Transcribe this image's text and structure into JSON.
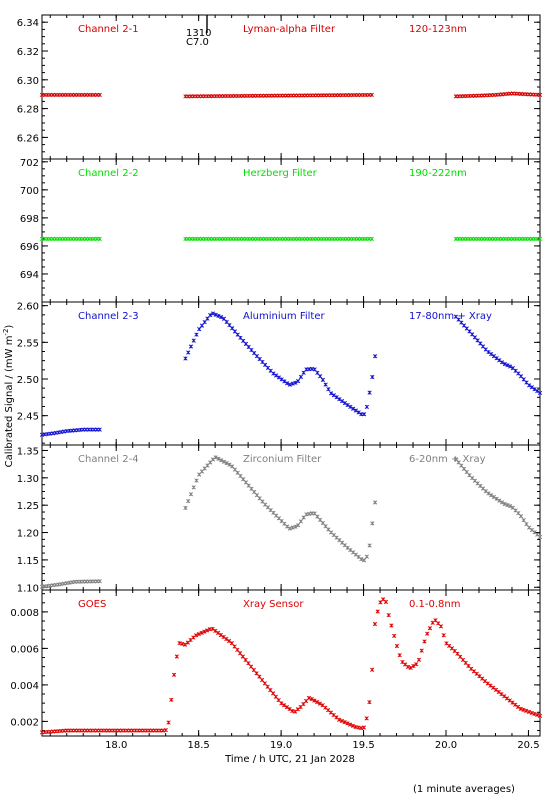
{
  "x_axis_label": "Time / h UTC, 21 Jan 2028",
  "y_axis_label": "Calibrated Signal / (mW m",
  "y_axis_label_sup": "-2",
  "y_axis_label_end": ")",
  "footnote": "(1 minute averages)",
  "marker_text": {
    "top": "1310",
    "bottom": "C7.0"
  },
  "chart_data": [
    {
      "type": "scatter",
      "labels": [
        "Channel 2-1",
        "Lyman-alpha Filter",
        "120-123nm"
      ],
      "color": "#d40000",
      "ylim": [
        6.245,
        6.345
      ],
      "yticks": [
        "6.26",
        "6.28",
        "6.30",
        "6.32",
        "6.34"
      ],
      "series": [
        {
          "x": [
            17.55,
            17.9
          ],
          "y": [
            6.2895,
            6.2895
          ]
        },
        {
          "x": [
            18.42,
            19.55
          ],
          "y": [
            6.2885,
            6.2895
          ]
        },
        {
          "x": [
            20.06,
            20.2,
            20.3,
            20.4,
            20.57
          ],
          "y": [
            6.2885,
            6.289,
            6.2895,
            6.2905,
            6.2895
          ]
        }
      ]
    },
    {
      "type": "scatter",
      "labels": [
        "Channel 2-2",
        "Herzberg Filter",
        "190-222nm"
      ],
      "color": "#00e000",
      "ylim": [
        692.0,
        702.2
      ],
      "yticks": [
        "694",
        "696",
        "698",
        "700",
        "702"
      ],
      "series": [
        {
          "x": [
            17.55,
            17.9
          ],
          "y": [
            696.5,
            696.5
          ]
        },
        {
          "x": [
            18.42,
            19.55
          ],
          "y": [
            696.5,
            696.5
          ]
        },
        {
          "x": [
            20.06,
            20.57
          ],
          "y": [
            696.5,
            696.5
          ]
        }
      ]
    },
    {
      "type": "scatter",
      "labels": [
        "Channel 2-3",
        "Aluminium Filter",
        "17-80nm + Xray"
      ],
      "color": "#1010d0",
      "ylim": [
        2.41,
        2.605
      ],
      "yticks": [
        "2.45",
        "2.50",
        "2.55",
        "2.60"
      ],
      "series": [
        {
          "x": [
            17.55,
            17.62,
            17.7,
            17.8,
            17.9
          ],
          "y": [
            2.424,
            2.426,
            2.429,
            2.431,
            2.431
          ]
        },
        {
          "x": [
            18.42,
            18.5,
            18.58,
            18.65,
            18.75,
            18.85,
            18.95,
            19.05,
            19.1,
            19.15,
            19.2,
            19.25,
            19.3,
            19.4,
            19.5,
            19.52,
            19.55,
            19.57
          ],
          "y": [
            2.528,
            2.567,
            2.59,
            2.583,
            2.557,
            2.532,
            2.508,
            2.492,
            2.496,
            2.513,
            2.514,
            2.5,
            2.481,
            2.465,
            2.45,
            2.462,
            2.497,
            2.531
          ]
        },
        {
          "x": [
            20.06,
            20.15,
            20.25,
            20.35,
            20.4,
            20.45,
            20.5,
            20.57
          ],
          "y": [
            2.585,
            2.563,
            2.538,
            2.521,
            2.516,
            2.505,
            2.492,
            2.481
          ]
        }
      ]
    },
    {
      "type": "scatter",
      "labels": [
        "Channel 2-4",
        "Zirconium Filter",
        "6-20nm + Xray"
      ],
      "color": "#808080",
      "ylim": [
        1.095,
        1.36
      ],
      "yticks": [
        "1.10",
        "1.15",
        "1.20",
        "1.25",
        "1.30",
        "1.35"
      ],
      "series": [
        {
          "x": [
            17.55,
            17.65,
            17.75,
            17.9
          ],
          "y": [
            1.101,
            1.105,
            1.11,
            1.111
          ]
        },
        {
          "x": [
            18.42,
            18.5,
            18.6,
            18.7,
            18.8,
            18.9,
            19.0,
            19.05,
            19.1,
            19.15,
            19.2,
            19.3,
            19.4,
            19.5,
            19.53,
            19.55,
            19.57
          ],
          "y": [
            1.245,
            1.305,
            1.338,
            1.322,
            1.287,
            1.252,
            1.222,
            1.207,
            1.212,
            1.233,
            1.236,
            1.201,
            1.173,
            1.148,
            1.16,
            1.209,
            1.255
          ]
        },
        {
          "x": [
            20.06,
            20.15,
            20.25,
            20.35,
            20.4,
            20.45,
            20.5,
            20.57
          ],
          "y": [
            1.334,
            1.302,
            1.273,
            1.253,
            1.247,
            1.232,
            1.21,
            1.192
          ]
        }
      ]
    },
    {
      "type": "scatter",
      "labels": [
        "GOES",
        "Xray Sensor",
        "0.1-0.8nm"
      ],
      "color": "#e00000",
      "ylim": [
        0.0012,
        0.0092
      ],
      "yticks": [
        "0.002",
        "0.004",
        "0.006",
        "0.008"
      ],
      "series": [
        {
          "x": [
            17.55,
            17.7,
            17.85,
            18.0,
            18.15,
            18.3,
            18.32,
            18.35,
            18.38,
            18.42,
            18.48,
            18.58,
            18.7,
            18.8,
            18.9,
            19.0,
            19.08,
            19.12,
            19.17,
            19.25,
            19.35,
            19.45,
            19.5,
            19.53,
            19.55,
            19.57,
            19.6,
            19.63,
            19.65,
            19.7,
            19.73,
            19.78,
            19.83,
            19.88,
            19.93,
            19.97,
            20.0,
            20.06,
            20.15,
            20.25,
            20.35,
            20.45,
            20.57
          ],
          "y": [
            0.0014,
            0.0015,
            0.0015,
            0.0015,
            0.0015,
            0.0015,
            0.002,
            0.0045,
            0.0063,
            0.0062,
            0.0067,
            0.0071,
            0.0063,
            0.0052,
            0.0041,
            0.003,
            0.0025,
            0.0028,
            0.0033,
            0.0029,
            0.0021,
            0.0017,
            0.0016,
            0.0025,
            0.0045,
            0.0075,
            0.0085,
            0.0088,
            0.0079,
            0.0062,
            0.0053,
            0.0049,
            0.0052,
            0.0067,
            0.0076,
            0.0072,
            0.0063,
            0.0058,
            0.0049,
            0.0041,
            0.0034,
            0.0027,
            0.0023
          ]
        }
      ]
    }
  ],
  "x_axis": {
    "range": [
      17.55,
      20.57
    ],
    "ticks": [
      "18.0",
      "18.5",
      "19.0",
      "19.5",
      "20.0",
      "20.5"
    ]
  }
}
